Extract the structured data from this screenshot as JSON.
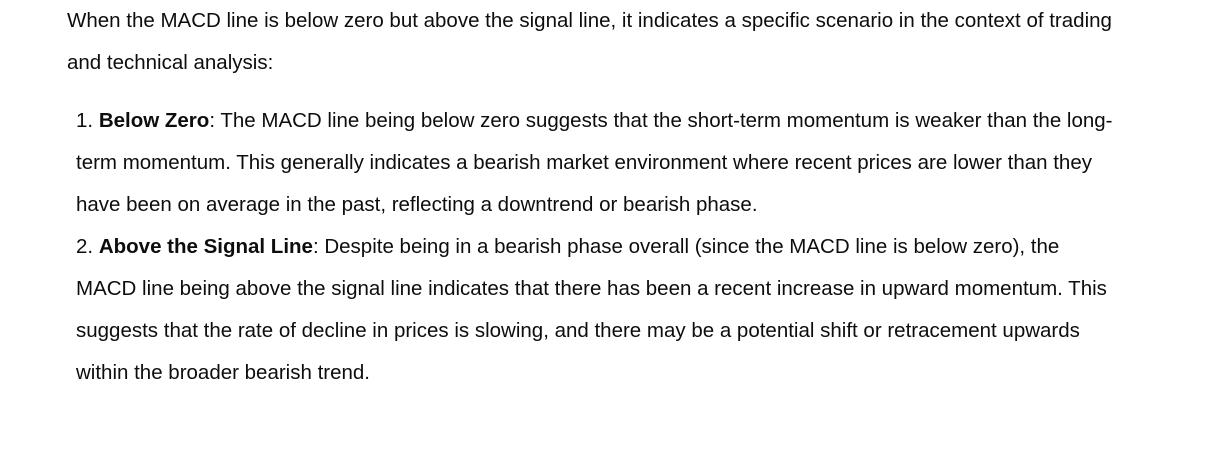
{
  "message": {
    "intro": "When the MACD line is below zero but above the signal line, it indicates a specific scenario in the context of trading and technical analysis:",
    "items": [
      {
        "number": "1.",
        "term": "Below Zero",
        "separator": ":",
        "text": " The MACD line being below zero suggests that the short-term momentum is weaker than the long-term momentum. This generally indicates a bearish market environment where recent prices are lower than they have been on average in the past, reflecting a downtrend or bearish phase."
      },
      {
        "number": "2.",
        "term": "Above the Signal Line",
        "separator": ":",
        "text": " Despite being in a bearish phase overall (since the MACD line is below zero), the MACD line being above the signal line indicates that there has been a recent increase in upward momentum. This suggests that the rate of decline in prices is slowing, and there may be a potential shift or retracement upwards within the broader bearish trend."
      }
    ]
  }
}
